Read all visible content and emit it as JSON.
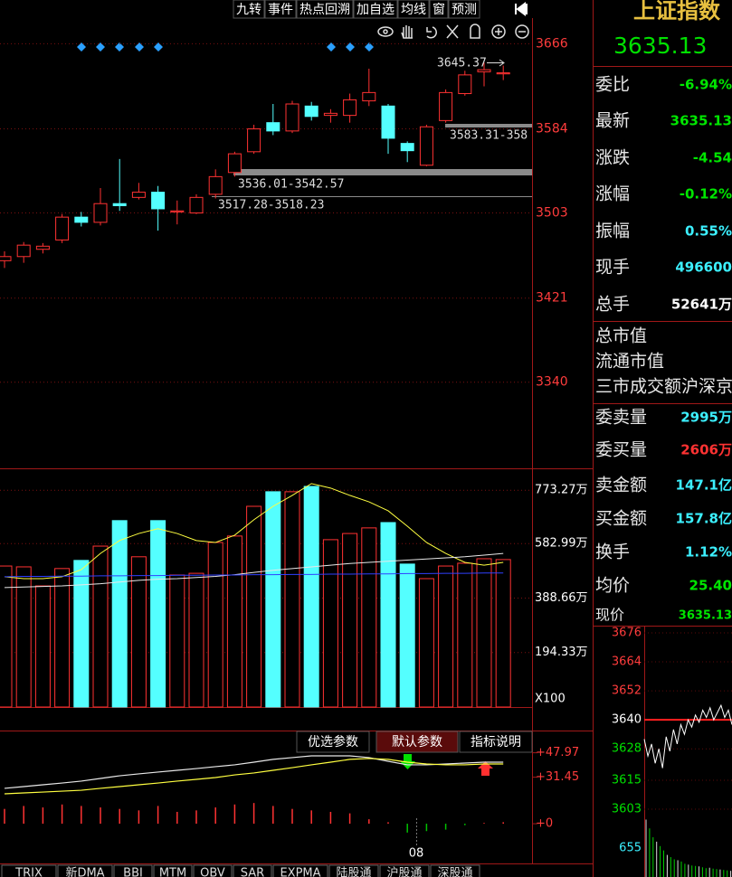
{
  "toolbar": [
    "九转",
    "事件",
    "热点回溯",
    "加自选",
    "均线",
    "窗",
    "预测"
  ],
  "price_chart": {
    "type": "candlestick",
    "open": [
      3457,
      3461,
      3468,
      3477,
      3499,
      3494,
      3512,
      3518,
      3523,
      3504,
      3503,
      3521,
      3542,
      3562,
      3590,
      3582,
      3606,
      3597,
      3597,
      3611,
      3606,
      3570,
      3549,
      3592,
      3618,
      3639,
      3637
    ],
    "high": [
      3466,
      3475,
      3474,
      3502,
      3504,
      3527,
      3555,
      3532,
      3529,
      3515,
      3521,
      3545,
      3562,
      3588,
      3608,
      3611,
      3610,
      3603,
      3618,
      3642,
      3608,
      3572,
      3588,
      3622,
      3640,
      3648,
      3645
    ],
    "low": [
      3450,
      3455,
      3464,
      3474,
      3490,
      3491,
      3505,
      3516,
      3486,
      3492,
      3502,
      3517,
      3538,
      3560,
      3578,
      3580,
      3592,
      3590,
      3590,
      3606,
      3560,
      3552,
      3548,
      3590,
      3616,
      3625,
      3631
    ],
    "close": [
      3461,
      3472,
      3471,
      3499,
      3494,
      3512,
      3510,
      3523,
      3507,
      3505,
      3518,
      3538,
      3560,
      3584,
      3582,
      3608,
      3596,
      3599,
      3612,
      3619,
      3575,
      3563,
      3586,
      3619,
      3636,
      3641,
      3638
    ],
    "up_color": "#ff3232",
    "down_color": "#54ffff",
    "ylim": [
      3257,
      3689
    ],
    "yticks": [
      3340,
      3421,
      3503,
      3584,
      3666
    ],
    "annotations": [
      "3645.37",
      "3583.31-358",
      "3536.01-3542.57",
      "3517.28-3518.23"
    ]
  },
  "volume_chart": {
    "type": "bar",
    "values": [
      503,
      500,
      432,
      494,
      523,
      574,
      665,
      536,
      665,
      471,
      477,
      587,
      610,
      716,
      768,
      768,
      787,
      597,
      619,
      639,
      658,
      510,
      458,
      503,
      513,
      529,
      526
    ],
    "ylim": [
      0,
      845
    ],
    "yticks": [
      {
        "value": 194.33,
        "label": "194.33万"
      },
      {
        "value": 388.66,
        "label": "388.66万"
      },
      {
        "value": 582.99,
        "label": "582.99万"
      },
      {
        "value": 773.27,
        "label": "773.27万"
      }
    ],
    "unit": "X100",
    "series": [
      {
        "color": "#ffff40",
        "values": [
          465,
          458,
          458,
          465,
          490,
          548,
          594,
          619,
          636,
          619,
          594,
          587,
          613,
          668,
          716,
          755,
          797,
          781,
          755,
          732,
          700,
          645,
          587,
          548,
          516,
          506,
          516
        ]
      },
      {
        "color": "#e8e8e8",
        "values": [
          426,
          428,
          430,
          432,
          436,
          440,
          446,
          452,
          456,
          458,
          462,
          466,
          472,
          480,
          488,
          494,
          500,
          506,
          512,
          516,
          520,
          524,
          528,
          532,
          536,
          542,
          548
        ]
      },
      {
        "color": "#3040ff",
        "values": [
          465,
          466,
          466,
          467,
          467,
          468,
          468,
          469,
          469,
          470,
          470,
          471,
          471,
          472,
          472,
          473,
          473,
          474,
          474,
          475,
          475,
          476,
          476,
          477,
          477,
          478,
          478
        ]
      }
    ]
  },
  "indicator_chart": {
    "type": "line",
    "buttons": [
      "优选参数",
      "默认参数",
      "指标说明"
    ],
    "ylim": [
      -17.7,
      63
    ],
    "yticks": [
      {
        "value": 0,
        "label": "+0"
      },
      {
        "value": 31.45,
        "label": "+31.45"
      },
      {
        "value": 47.97,
        "label": "+47.97"
      }
    ],
    "series": [
      {
        "color": "#e8e8e8",
        "values": [
          23.9,
          25.1,
          26.3,
          27.5,
          28.8,
          30.6,
          32.4,
          33.7,
          34.9,
          36.1,
          37.3,
          38.6,
          39.8,
          41.6,
          43.5,
          44.7,
          45.9,
          45.9,
          45.9,
          44.7,
          42.2,
          39.8,
          39.8,
          40.4,
          41.0,
          41.6,
          41.6
        ]
      },
      {
        "color": "#ffff40",
        "values": [
          20.2,
          20.8,
          21.4,
          22.0,
          22.6,
          23.9,
          25.1,
          26.3,
          27.5,
          28.8,
          30.0,
          31.2,
          33.0,
          34.3,
          36.1,
          37.9,
          39.8,
          41.6,
          43.5,
          44.1,
          43.5,
          41.6,
          40.4,
          39.8,
          39.8,
          40.4,
          40.4
        ]
      }
    ],
    "bars": [
      10,
      12,
      11,
      13,
      12,
      11,
      10,
      9,
      12,
      8,
      9,
      11,
      13,
      14,
      12,
      10,
      9,
      8,
      7,
      3,
      1,
      -6,
      -5,
      -4,
      -1,
      0.5,
      1
    ],
    "x_label": "08"
  },
  "tabs": [
    "TRIX",
    "新DMA",
    "BBI",
    "MTM",
    "OBV",
    "SAR",
    "EXPMA",
    "陆股通",
    "沪股通",
    "深股通"
  ],
  "panel": {
    "title": "上证指数",
    "price": "3635.13",
    "rows": [
      {
        "label": "委比",
        "value": "-6.94%",
        "color": "#00e600"
      },
      {
        "label": "最新",
        "value": "3635.13",
        "color": "#00e600"
      },
      {
        "label": "涨跌",
        "value": "-4.54",
        "color": "#00e600"
      },
      {
        "label": "涨幅",
        "value": "-0.12%",
        "color": "#00e600"
      },
      {
        "label": "振幅",
        "value": "0.55%",
        "color": "#3cf0ff"
      },
      {
        "label": "现手",
        "value": "496600",
        "color": "#3cf0ff"
      },
      {
        "label": "总手",
        "value": "52641万",
        "color": "#ffffff"
      },
      {
        "label": "总市值"
      },
      {
        "label": "流通市值"
      },
      {
        "label": "三市成交额沪深京"
      },
      {
        "label": "委卖量",
        "value": "2995万",
        "color": "#3cf0ff"
      },
      {
        "label": "委买量",
        "value": "2606万",
        "color": "#ff3232"
      },
      {
        "label": "卖金额",
        "value": "147.1亿",
        "color": "#3cf0ff"
      },
      {
        "label": "买金额",
        "value": "157.8亿",
        "color": "#3cf0ff"
      },
      {
        "label": "换手",
        "value": "1.12%",
        "color": "#3cf0ff"
      },
      {
        "label": "均价",
        "value": "25.40",
        "color": "#00e600"
      },
      {
        "label": "现价",
        "value": "3635.13",
        "color": "#00e600"
      }
    ]
  },
  "mini_chart": {
    "type": "line",
    "ylim": [
      3603,
      3676
    ],
    "yticks": [
      3603,
      3615,
      3628,
      3640,
      3652,
      3664,
      3676
    ],
    "values": [
      3632,
      3625,
      3630,
      3622,
      3628,
      3620,
      3633,
      3627,
      3636,
      3630,
      3638,
      3634,
      3640,
      3637,
      3642,
      3639,
      3644,
      3641,
      3645,
      3640,
      3643,
      3646,
      3641,
      3644,
      3638
    ],
    "volume": [
      1300,
      1100,
      900,
      800,
      700,
      600,
      500,
      450,
      400,
      380,
      350,
      300,
      280,
      260,
      250,
      240,
      220,
      200,
      210,
      190,
      180,
      170,
      160,
      150,
      140
    ],
    "volume_ylim": [
      0,
      1310
    ],
    "volume_tick": 655
  }
}
